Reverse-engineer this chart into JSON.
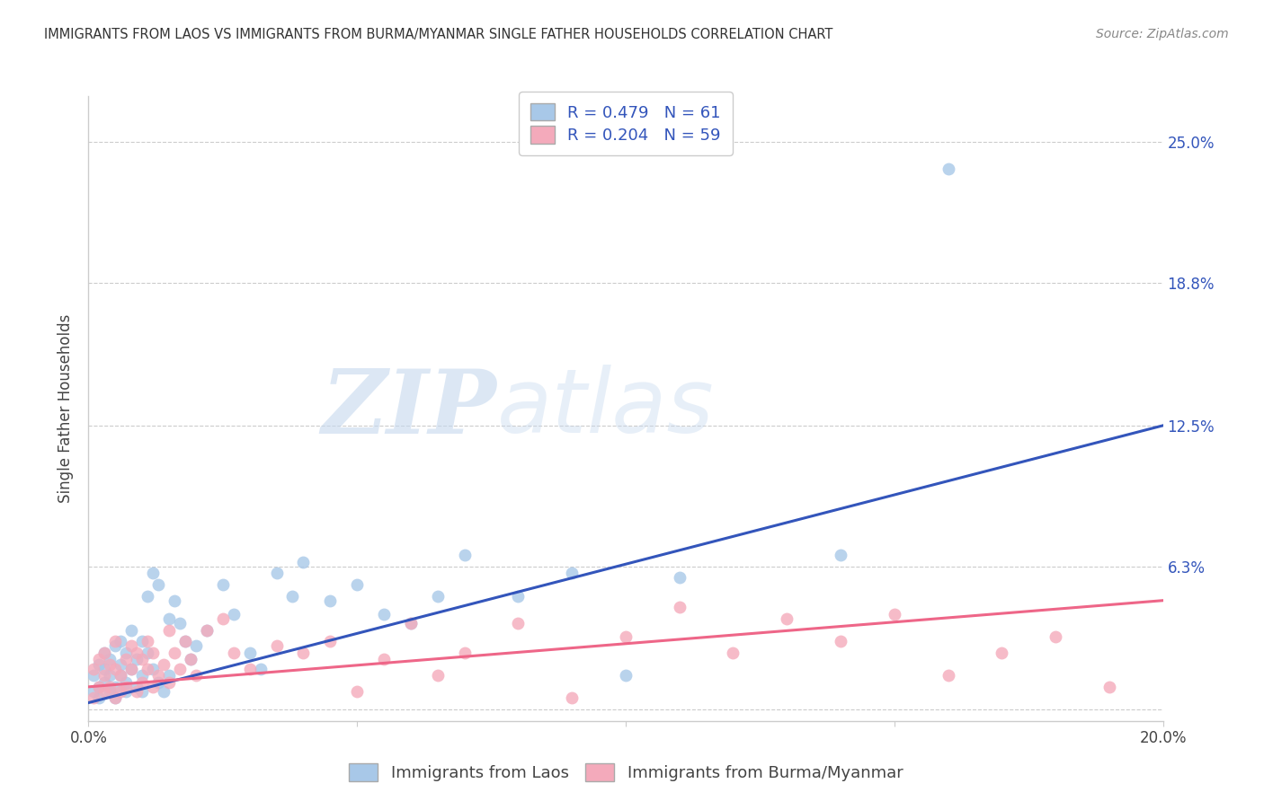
{
  "title": "IMMIGRANTS FROM LAOS VS IMMIGRANTS FROM BURMA/MYANMAR SINGLE FATHER HOUSEHOLDS CORRELATION CHART",
  "source": "Source: ZipAtlas.com",
  "xlabel_laos": "Immigrants from Laos",
  "xlabel_burma": "Immigrants from Burma/Myanmar",
  "ylabel": "Single Father Households",
  "xlim": [
    0.0,
    0.2
  ],
  "ylim": [
    -0.005,
    0.27
  ],
  "yticks": [
    0.0,
    0.063,
    0.125,
    0.188,
    0.25
  ],
  "ytick_labels": [
    "",
    "6.3%",
    "12.5%",
    "18.8%",
    "25.0%"
  ],
  "xticks": [
    0.0,
    0.05,
    0.1,
    0.15,
    0.2
  ],
  "xtick_labels": [
    "0.0%",
    "",
    "",
    "",
    "20.0%"
  ],
  "color_laos": "#A8C8E8",
  "color_burma": "#F4AABB",
  "line_color_laos": "#3355BB",
  "line_color_burma": "#EE6688",
  "r_laos": 0.479,
  "n_laos": 61,
  "r_burma": 0.204,
  "n_burma": 59,
  "watermark_zip": "ZIP",
  "watermark_atlas": "atlas",
  "line_laos_x0": 0.0,
  "line_laos_y0": 0.003,
  "line_laos_x1": 0.2,
  "line_laos_y1": 0.125,
  "line_burma_x0": 0.0,
  "line_burma_y0": 0.01,
  "line_burma_x1": 0.2,
  "line_burma_y1": 0.048,
  "scatter_laos_x": [
    0.001,
    0.001,
    0.002,
    0.002,
    0.002,
    0.003,
    0.003,
    0.003,
    0.004,
    0.004,
    0.004,
    0.005,
    0.005,
    0.005,
    0.006,
    0.006,
    0.006,
    0.007,
    0.007,
    0.007,
    0.008,
    0.008,
    0.009,
    0.009,
    0.01,
    0.01,
    0.01,
    0.011,
    0.011,
    0.012,
    0.012,
    0.013,
    0.013,
    0.014,
    0.015,
    0.015,
    0.016,
    0.017,
    0.018,
    0.019,
    0.02,
    0.022,
    0.025,
    0.027,
    0.03,
    0.032,
    0.035,
    0.038,
    0.04,
    0.045,
    0.05,
    0.055,
    0.06,
    0.065,
    0.07,
    0.08,
    0.09,
    0.1,
    0.11,
    0.14,
    0.16
  ],
  "scatter_laos_y": [
    0.008,
    0.015,
    0.01,
    0.02,
    0.005,
    0.018,
    0.012,
    0.025,
    0.008,
    0.022,
    0.015,
    0.01,
    0.028,
    0.005,
    0.02,
    0.015,
    0.03,
    0.012,
    0.025,
    0.008,
    0.018,
    0.035,
    0.01,
    0.022,
    0.015,
    0.03,
    0.008,
    0.025,
    0.05,
    0.018,
    0.06,
    0.012,
    0.055,
    0.008,
    0.04,
    0.015,
    0.048,
    0.038,
    0.03,
    0.022,
    0.028,
    0.035,
    0.055,
    0.042,
    0.025,
    0.018,
    0.06,
    0.05,
    0.065,
    0.048,
    0.055,
    0.042,
    0.038,
    0.05,
    0.068,
    0.05,
    0.06,
    0.015,
    0.058,
    0.068,
    0.238
  ],
  "scatter_burma_x": [
    0.001,
    0.001,
    0.002,
    0.002,
    0.003,
    0.003,
    0.003,
    0.004,
    0.004,
    0.005,
    0.005,
    0.005,
    0.006,
    0.006,
    0.007,
    0.007,
    0.008,
    0.008,
    0.009,
    0.009,
    0.01,
    0.01,
    0.011,
    0.011,
    0.012,
    0.012,
    0.013,
    0.014,
    0.015,
    0.015,
    0.016,
    0.017,
    0.018,
    0.019,
    0.02,
    0.022,
    0.025,
    0.027,
    0.03,
    0.035,
    0.04,
    0.045,
    0.05,
    0.055,
    0.06,
    0.065,
    0.07,
    0.08,
    0.09,
    0.1,
    0.11,
    0.12,
    0.13,
    0.14,
    0.15,
    0.16,
    0.17,
    0.18,
    0.19
  ],
  "scatter_burma_y": [
    0.005,
    0.018,
    0.01,
    0.022,
    0.008,
    0.015,
    0.025,
    0.01,
    0.02,
    0.005,
    0.018,
    0.03,
    0.008,
    0.015,
    0.022,
    0.01,
    0.018,
    0.028,
    0.008,
    0.025,
    0.012,
    0.022,
    0.018,
    0.03,
    0.01,
    0.025,
    0.015,
    0.02,
    0.012,
    0.035,
    0.025,
    0.018,
    0.03,
    0.022,
    0.015,
    0.035,
    0.04,
    0.025,
    0.018,
    0.028,
    0.025,
    0.03,
    0.008,
    0.022,
    0.038,
    0.015,
    0.025,
    0.038,
    0.005,
    0.032,
    0.045,
    0.025,
    0.04,
    0.03,
    0.042,
    0.015,
    0.025,
    0.032,
    0.01
  ]
}
